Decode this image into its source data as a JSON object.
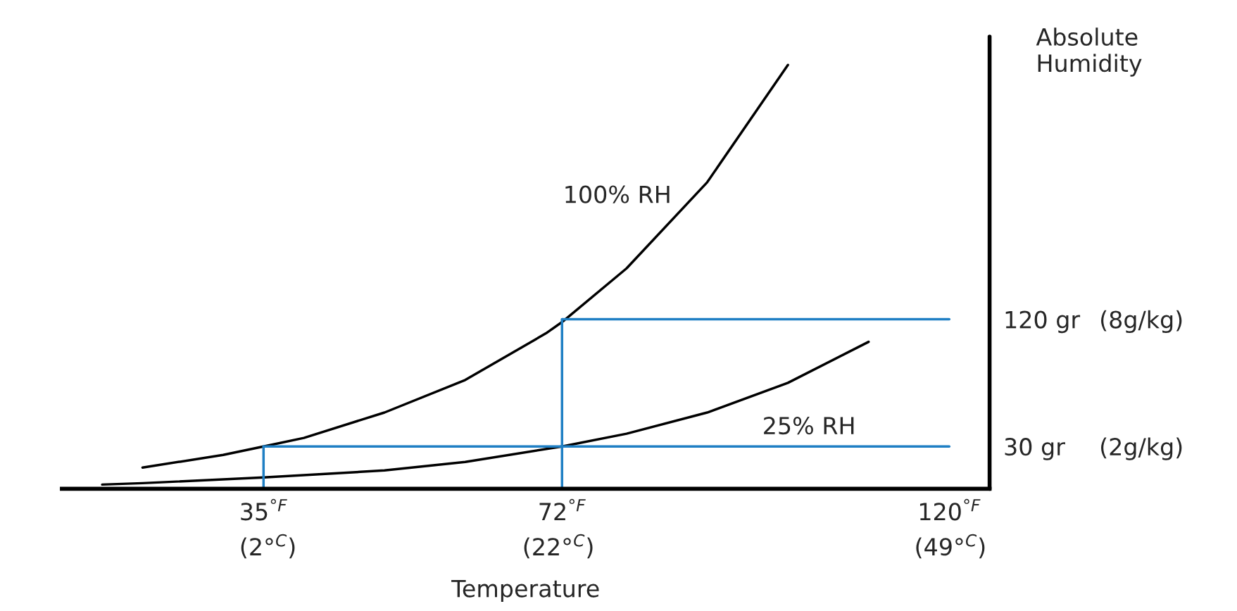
{
  "chart_data": {
    "type": "line",
    "xlabel": "Temperature",
    "ylabel": "Absolute Humidity",
    "xlim": [
      10,
      125
    ],
    "ylim": [
      0,
      320
    ],
    "xticks": [
      {
        "value": 35,
        "label": "35$^{°F}$"
      },
      {
        "value": 72,
        "label": "72$^{°F}$"
      },
      {
        "value": 120,
        "label": "120$^{°F}$"
      }
    ],
    "x2lim": [
      -12.2,
      51.7
    ],
    "x2ticks": [
      {
        "value": 2,
        "label": "(2°$^{C}$)"
      },
      {
        "value": 22,
        "label": "(22°$^{C}$)"
      },
      {
        "value": 49,
        "label": "(49°$^{C}$)"
      }
    ],
    "yticks": [
      {
        "value": 30,
        "label": "30 gr"
      },
      {
        "value": 120,
        "label": "120 gr"
      }
    ],
    "y2lim": [
      0,
      21.33
    ],
    "y2ticks": [
      {
        "value": 2,
        "label": "(2g/kg)"
      },
      {
        "value": 8,
        "label": "(8g/kg)"
      }
    ],
    "series": [
      {
        "color": "#000000",
        "x": [
          20,
          30,
          35,
          40,
          50,
          60,
          70,
          72,
          80,
          90,
          100
        ],
        "values": [
          15,
          24,
          30,
          36,
          54,
          77,
          110,
          118,
          156,
          217,
          300
        ]
      },
      {
        "color": "#000000",
        "x": [
          15,
          20,
          35,
          50,
          60,
          72,
          80,
          90,
          100,
          110
        ],
        "values": [
          3,
          4,
          8,
          13,
          19,
          30,
          39,
          54,
          75,
          104
        ]
      },
      {
        "color": "#1f7fc4",
        "x": [
          35,
          120
        ],
        "values": [
          30,
          30
        ]
      },
      {
        "color": "#1f7fc4",
        "x": [
          72,
          120
        ],
        "values": [
          120,
          120
        ]
      },
      {
        "color": "#1f7fc4",
        "x": [
          35,
          35
        ],
        "values": [
          0,
          30
        ]
      },
      {
        "color": "#1f7fc4",
        "x": [
          72,
          72
        ],
        "values": [
          0,
          120
        ]
      }
    ],
    "annotations": [
      {
        "text": "100% RH",
        "x": 88,
        "y": 200
      },
      {
        "text": "25% RH",
        "x": 95,
        "y": 64
      }
    ],
    "ref_lines": [
      {
        "axis": "x",
        "value": 125,
        "color": "#000000"
      }
    ],
    "grid": false,
    "legend": false,
    "marker": "none",
    "line_style": "solid"
  }
}
